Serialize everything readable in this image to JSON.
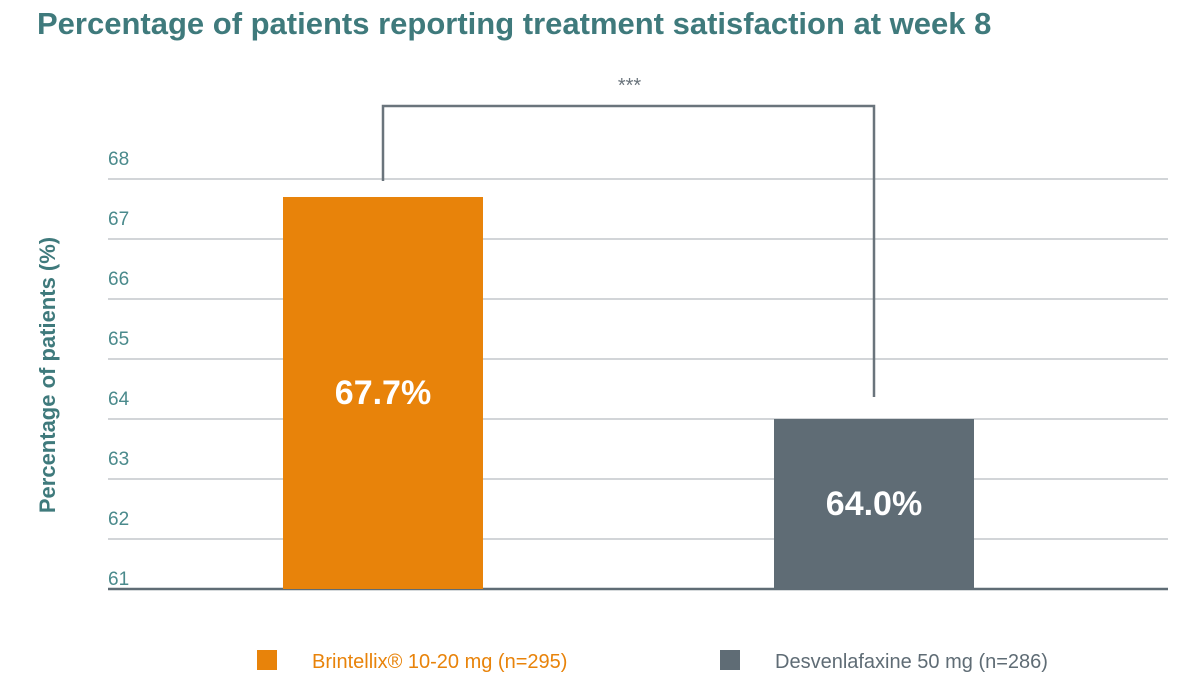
{
  "colors": {
    "title": "#3f7a7c",
    "axis_text": "#4a8a8c",
    "grid": "#b8bcc0",
    "baseline": "#5f6c75",
    "bracket": "#6a747c",
    "label_text": "#ffffff"
  },
  "chart_data": {
    "type": "bar",
    "title": "Percentage of patients reporting treatment satisfaction at week 8",
    "xlabel": "",
    "ylabel": "Percentage of patients (%)",
    "ylim": [
      61,
      68
    ],
    "yticks": [
      61,
      62,
      63,
      64,
      65,
      66,
      67,
      68
    ],
    "grid": true,
    "categories": [
      "Brintellix® 10-20 mg (n=295)",
      "Desvenlafaxine 50 mg (n=286)"
    ],
    "values": [
      67.7,
      64.0
    ],
    "data_labels": [
      "67.7%",
      "64.0%"
    ],
    "bar_colors": [
      "#e8830a",
      "#5f6c75"
    ],
    "significance": "***",
    "legend": {
      "position": "bottom",
      "entries": [
        {
          "label": "Brintellix® 10-20 mg (n=295)",
          "color": "#e8830a",
          "text_color": "#e8830a"
        },
        {
          "label": "Desvenlafaxine 50 mg (n=286)",
          "color": "#5f6c75",
          "text_color": "#5f6c75"
        }
      ]
    }
  }
}
